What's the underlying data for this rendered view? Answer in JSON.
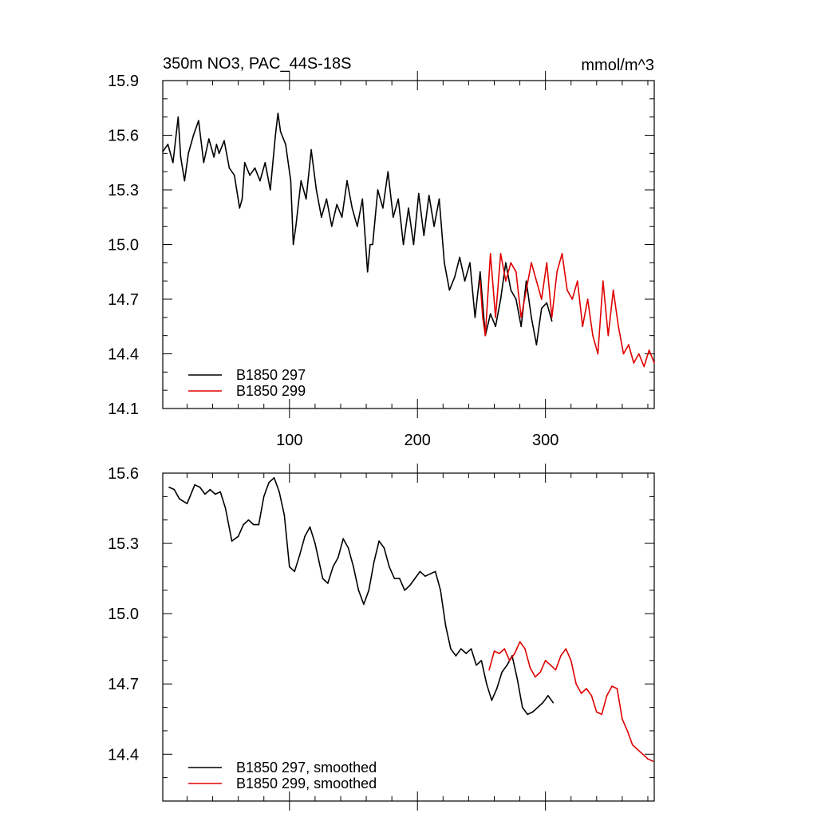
{
  "figure": {
    "title": "350m NO3, PAC_44S-18S",
    "units": "mmol/m^3"
  },
  "chart_data": [
    {
      "type": "line",
      "title": "350m NO3, PAC_44S-18S",
      "ylabel": "mmol/m^3",
      "xlabel": "",
      "xlim": [
        1,
        385
      ],
      "ylim": [
        14.1,
        15.9
      ],
      "x_ticks": [
        100,
        200,
        300
      ],
      "y_ticks": [
        14.1,
        14.4,
        14.7,
        15.0,
        15.3,
        15.6,
        15.9
      ],
      "y_tick_labels": [
        "14.1",
        "14.4",
        "14.7",
        "15.0",
        "15.3",
        "15.6",
        "15.9"
      ],
      "x_tick_labels": [
        "100",
        "200",
        "300"
      ],
      "grid": false,
      "legend_position": "bottom-left",
      "series": [
        {
          "name": "B1850 297",
          "color": "#000000",
          "x": [
            1,
            5,
            9,
            13,
            15,
            18,
            21,
            25,
            29,
            33,
            37,
            41,
            43,
            45,
            49,
            53,
            57,
            61,
            63,
            65,
            69,
            73,
            77,
            81,
            85,
            89,
            91,
            93,
            97,
            101,
            103,
            105,
            109,
            113,
            117,
            121,
            125,
            129,
            133,
            137,
            141,
            145,
            149,
            153,
            157,
            161,
            163,
            165,
            169,
            173,
            177,
            181,
            185,
            189,
            193,
            197,
            201,
            205,
            209,
            213,
            217,
            221,
            225,
            229,
            233,
            237,
            241,
            245,
            249,
            253,
            257,
            261,
            265,
            269,
            273,
            277,
            281,
            285,
            289,
            293,
            297,
            301,
            305
          ],
          "values": [
            15.51,
            15.55,
            15.45,
            15.7,
            15.48,
            15.35,
            15.5,
            15.6,
            15.68,
            15.45,
            15.58,
            15.48,
            15.55,
            15.5,
            15.57,
            15.42,
            15.38,
            15.2,
            15.25,
            15.45,
            15.38,
            15.42,
            15.35,
            15.45,
            15.3,
            15.6,
            15.72,
            15.62,
            15.55,
            15.35,
            15.0,
            15.1,
            15.35,
            15.25,
            15.52,
            15.3,
            15.15,
            15.25,
            15.1,
            15.22,
            15.15,
            15.35,
            15.2,
            15.1,
            15.25,
            14.85,
            15.0,
            15.0,
            15.3,
            15.2,
            15.4,
            15.15,
            15.25,
            15.0,
            15.2,
            15.0,
            15.28,
            15.05,
            15.27,
            15.1,
            15.25,
            14.9,
            14.75,
            14.82,
            14.93,
            14.8,
            14.9,
            14.6,
            14.85,
            14.5,
            14.62,
            14.55,
            14.7,
            14.9,
            14.75,
            14.7,
            14.55,
            14.8,
            14.6,
            14.45,
            14.65,
            14.68,
            14.58
          ]
        },
        {
          "name": "B1850 299",
          "color": "#e00000",
          "x": [
            249,
            251,
            253,
            257,
            261,
            265,
            269,
            273,
            277,
            281,
            285,
            289,
            293,
            297,
            301,
            305,
            309,
            313,
            317,
            321,
            325,
            329,
            333,
            337,
            341,
            345,
            349,
            353,
            357,
            361,
            365,
            369,
            373,
            377,
            381,
            385
          ],
          "values": [
            14.8,
            14.6,
            14.5,
            14.95,
            14.6,
            14.95,
            14.8,
            14.9,
            14.85,
            14.6,
            14.75,
            14.9,
            14.8,
            14.7,
            14.9,
            14.6,
            14.85,
            14.95,
            14.75,
            14.7,
            14.8,
            14.55,
            14.7,
            14.5,
            14.4,
            14.8,
            14.5,
            14.75,
            14.55,
            14.4,
            14.45,
            14.35,
            14.4,
            14.33,
            14.42,
            14.35
          ]
        }
      ]
    },
    {
      "type": "line",
      "title": "",
      "ylabel": "",
      "xlabel": "",
      "xlim": [
        1,
        385
      ],
      "ylim": [
        14.2,
        15.6
      ],
      "x_ticks": [
        100,
        200,
        300
      ],
      "y_ticks": [
        14.4,
        14.7,
        15.0,
        15.3,
        15.6
      ],
      "y_tick_labels": [
        "14.4",
        "14.7",
        "15.0",
        "15.3",
        "15.6"
      ],
      "grid": false,
      "legend_position": "bottom-left",
      "series": [
        {
          "name": "B1850 297, smoothed",
          "color": "#000000",
          "x": [
            6,
            10,
            14,
            20,
            26,
            30,
            34,
            38,
            42,
            46,
            50,
            55,
            60,
            64,
            68,
            72,
            76,
            80,
            84,
            88,
            92,
            96,
            100,
            104,
            108,
            112,
            116,
            120,
            126,
            130,
            134,
            138,
            142,
            146,
            150,
            154,
            158,
            162,
            166,
            170,
            174,
            178,
            182,
            186,
            190,
            194,
            198,
            202,
            206,
            210,
            214,
            218,
            222,
            226,
            230,
            234,
            238,
            242,
            246,
            250,
            254,
            258,
            262,
            266,
            270,
            274,
            278,
            282,
            286,
            290,
            294,
            298,
            302,
            306
          ],
          "values": [
            15.54,
            15.53,
            15.49,
            15.47,
            15.55,
            15.54,
            15.51,
            15.53,
            15.51,
            15.52,
            15.45,
            15.31,
            15.33,
            15.38,
            15.4,
            15.38,
            15.38,
            15.5,
            15.56,
            15.58,
            15.52,
            15.42,
            15.2,
            15.18,
            15.25,
            15.33,
            15.37,
            15.3,
            15.15,
            15.13,
            15.2,
            15.24,
            15.32,
            15.28,
            15.2,
            15.1,
            15.04,
            15.1,
            15.22,
            15.31,
            15.28,
            15.2,
            15.15,
            15.15,
            15.1,
            15.12,
            15.15,
            15.18,
            15.16,
            15.17,
            15.18,
            15.1,
            14.95,
            14.85,
            14.82,
            14.85,
            14.83,
            14.85,
            14.78,
            14.8,
            14.7,
            14.63,
            14.68,
            14.75,
            14.78,
            14.82,
            14.72,
            14.6,
            14.57,
            14.58,
            14.6,
            14.62,
            14.65,
            14.62
          ]
        },
        {
          "name": "B1850 299, smoothed",
          "color": "#e00000",
          "x": [
            256,
            260,
            264,
            268,
            272,
            276,
            280,
            284,
            288,
            292,
            296,
            300,
            304,
            308,
            312,
            316,
            320,
            324,
            328,
            332,
            336,
            340,
            344,
            348,
            352,
            356,
            360,
            364,
            368,
            372,
            376,
            380,
            384
          ],
          "values": [
            14.76,
            14.84,
            14.83,
            14.85,
            14.8,
            14.83,
            14.88,
            14.85,
            14.77,
            14.73,
            14.75,
            14.8,
            14.78,
            14.76,
            14.82,
            14.85,
            14.8,
            14.7,
            14.66,
            14.68,
            14.65,
            14.58,
            14.57,
            14.65,
            14.69,
            14.68,
            14.55,
            14.5,
            14.44,
            14.42,
            14.4,
            14.38,
            14.37
          ]
        }
      ]
    }
  ]
}
